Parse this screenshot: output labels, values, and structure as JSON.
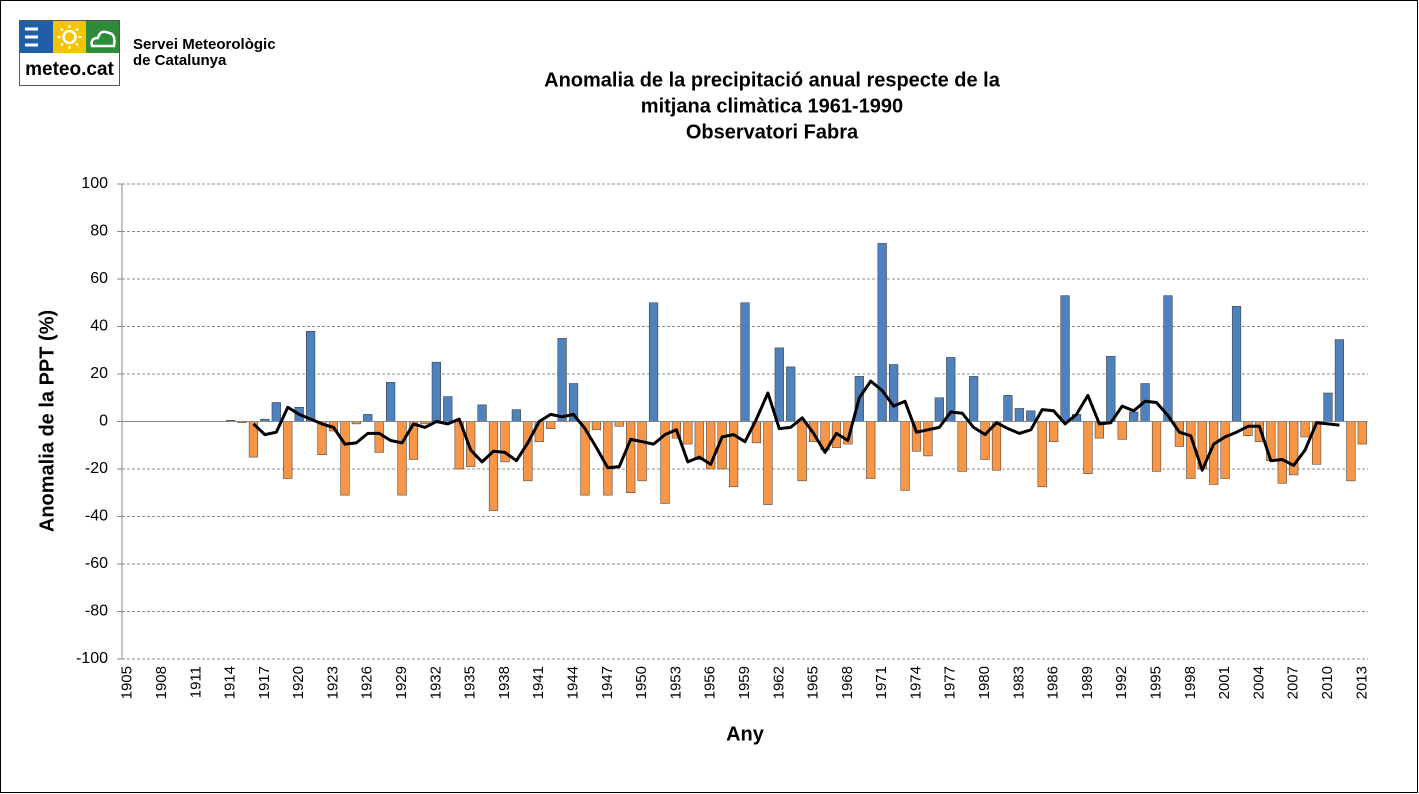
{
  "header": {
    "logo_text": "meteo.cat",
    "organization": [
      "Servei Meteorològic",
      "de Catalunya"
    ]
  },
  "chart_data": {
    "type": "bar",
    "title_lines": [
      "Anomalia de la precipitació anual respecte de la",
      "mitjana climàtica 1961-1990",
      "Observatori Fabra"
    ],
    "x_label": "Any",
    "y_label": "Anomalia de la PPT (%)",
    "ylim": [
      -100,
      100
    ],
    "yticks": [
      -100,
      -80,
      -60,
      -40,
      -20,
      0,
      20,
      40,
      60,
      80,
      100
    ],
    "grid": true,
    "categories": [
      "1905",
      null,
      null,
      "1908",
      null,
      null,
      "1911",
      null,
      null,
      "1914",
      null,
      null,
      "1917",
      null,
      null,
      "1920",
      null,
      null,
      "1923",
      null,
      null,
      "1926",
      null,
      null,
      "1929",
      null,
      null,
      "1932",
      null,
      null,
      "1935",
      null,
      null,
      "1938",
      null,
      null,
      "1941",
      null,
      null,
      "1944",
      null,
      null,
      "1947",
      null,
      null,
      "1950",
      null,
      null,
      "1953",
      null,
      null,
      "1956",
      null,
      null,
      "1959",
      null,
      null,
      "1962",
      null,
      null,
      "1965",
      null,
      null,
      "1968",
      null,
      null,
      "1971",
      null,
      null,
      "1974",
      null,
      null,
      "1977",
      null,
      null,
      "1980",
      null,
      null,
      "1983",
      null,
      null,
      "1986",
      null,
      null,
      "1989",
      null,
      null,
      "1992",
      null,
      null,
      "1995",
      null,
      null,
      "1998",
      null,
      null,
      "2001",
      null,
      null,
      "2004",
      null,
      null,
      "2007",
      null,
      null,
      "2010",
      null,
      null,
      "2013"
    ],
    "series": [
      {
        "type": "bar",
        "color_positive": "#4f81bd",
        "color_negative": "#f79646",
        "values": [
          null,
          null,
          null,
          null,
          null,
          null,
          null,
          null,
          null,
          0.5,
          -0.5,
          -15,
          1,
          8,
          -24,
          6,
          38,
          -14,
          -4,
          -31,
          -1,
          3,
          -13,
          16.5,
          -31,
          -16,
          -1,
          25,
          10.5,
          -20,
          -19,
          7,
          -37.5,
          -17,
          5,
          -25,
          -8.5,
          -3,
          35,
          16,
          -31,
          -3.5,
          -31,
          -2,
          -30,
          -25,
          50,
          -34.5,
          -7,
          -9.5,
          -16,
          -20,
          -20,
          -27.5,
          50,
          -9,
          -35,
          31,
          23,
          -25,
          -8.5,
          -12,
          -11,
          -9.5,
          19,
          -24,
          75,
          24,
          -29,
          -12.5,
          -14.5,
          10,
          27,
          -21,
          19,
          -16,
          -20.5,
          11,
          5.5,
          4.5,
          -27.5,
          -8.5,
          53,
          3,
          -22,
          -7,
          27.5,
          -7.5,
          4,
          16,
          -21,
          53,
          -10.5,
          -24,
          -20,
          -26.5,
          -24,
          48.5,
          -6,
          -8.5,
          -16.5,
          -26,
          -22.5,
          -6.5,
          -18,
          12,
          34.5,
          -25,
          -9.5
        ]
      },
      {
        "type": "line",
        "color": "#000000",
        "values": [
          null,
          null,
          null,
          null,
          null,
          null,
          null,
          null,
          null,
          null,
          null,
          -1,
          -5.5,
          -4.5,
          6,
          3,
          1,
          -1,
          -2.5,
          -9.5,
          -9,
          -5,
          -5,
          -8,
          -9,
          -1,
          -2.5,
          0,
          -1,
          1,
          -12,
          -17,
          -12.5,
          -13,
          -16.5,
          -9,
          0,
          3,
          2,
          3,
          -3,
          -11,
          -19.5,
          -19,
          -7.5,
          -8.5,
          -9.5,
          -5.5,
          -3.5,
          -17,
          -15,
          -18,
          -6.5,
          -5.5,
          -8.5,
          1,
          12,
          -3,
          -2.5,
          1.5,
          -5,
          -13,
          -5,
          -8,
          10,
          17,
          13,
          6.5,
          8.5,
          -4.5,
          -3.5,
          -2.5,
          4,
          3.5,
          -2.5,
          -5.5,
          -0.5,
          -3,
          -5,
          -3.5,
          5,
          4.5,
          -1,
          3,
          11,
          -1,
          -0.5,
          6.5,
          4.5,
          8.5,
          8,
          2.5,
          -4.5,
          -6,
          -20.5,
          -9.5,
          -6.5,
          -4.5,
          -2,
          -2,
          -16.5,
          -16,
          -18.5,
          -12,
          -0.5,
          -1,
          -1.5,
          null,
          null
        ]
      }
    ]
  }
}
